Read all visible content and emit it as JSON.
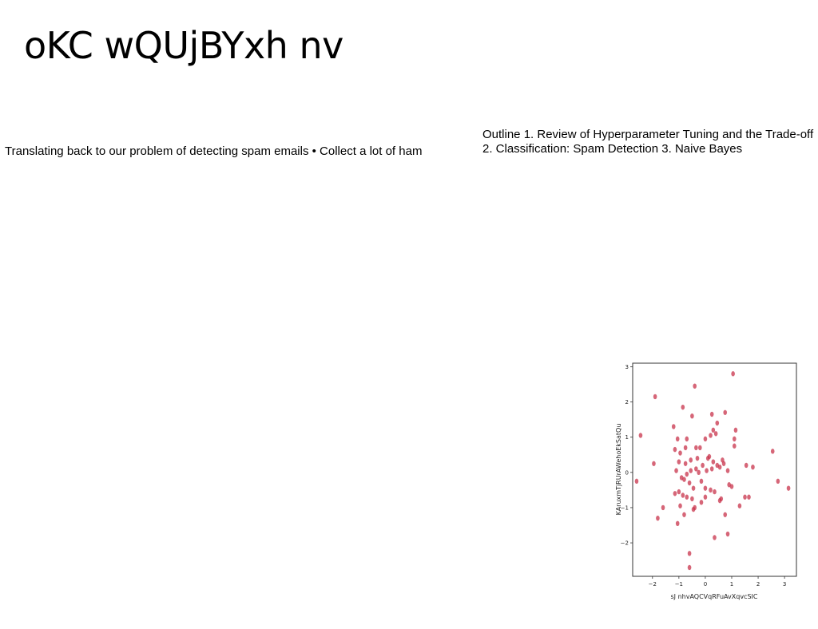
{
  "slide": {
    "title": "oKC wQUjBYxh nv",
    "body_text": "Translating back to our problem of detecting spam emails • Collect a lot of ham",
    "outline_text": "Outline 1. Review of Hyperparameter Tuning and the Trade-off 2. Classification: Spam Detection 3. Naive Bayes"
  },
  "chart_data": {
    "type": "scatter",
    "title": "",
    "xlabel": "sJ nhvAQCVqRFuAvXqvcSIC",
    "ylabel": "KAruxmTjRUrAWehoEkSatQu",
    "xlim": [
      -2.75,
      3.45
    ],
    "ylim": [
      -2.95,
      3.1
    ],
    "xticks": [
      -2,
      -1,
      0,
      1,
      2,
      3
    ],
    "yticks": [
      -2,
      -1,
      0,
      1,
      2,
      3
    ],
    "xtick_labels": [
      "−2",
      "−1",
      "0",
      "1",
      "2",
      "3"
    ],
    "ytick_labels": [
      "−2",
      "−1",
      "0",
      "1",
      "2",
      "3"
    ],
    "grid": false,
    "marker_color": "#c8334b",
    "points": [
      [
        -1.9,
        2.15
      ],
      [
        -0.4,
        2.45
      ],
      [
        1.05,
        2.8
      ],
      [
        -0.85,
        1.85
      ],
      [
        -0.5,
        1.6
      ],
      [
        0.25,
        1.65
      ],
      [
        0.75,
        1.7
      ],
      [
        -2.45,
        1.05
      ],
      [
        -1.2,
        1.3
      ],
      [
        -1.05,
        0.95
      ],
      [
        -0.7,
        0.95
      ],
      [
        0.45,
        1.4
      ],
      [
        0.3,
        1.2
      ],
      [
        1.15,
        1.2
      ],
      [
        1.1,
        0.95
      ],
      [
        -1.15,
        0.65
      ],
      [
        -0.95,
        0.55
      ],
      [
        -0.75,
        0.7
      ],
      [
        -0.35,
        0.7
      ],
      [
        -0.2,
        0.7
      ],
      [
        0.0,
        0.95
      ],
      [
        0.2,
        1.05
      ],
      [
        0.4,
        1.1
      ],
      [
        1.1,
        0.75
      ],
      [
        -1.95,
        0.25
      ],
      [
        -1.0,
        0.3
      ],
      [
        -0.75,
        0.25
      ],
      [
        -0.55,
        0.35
      ],
      [
        -0.3,
        0.4
      ],
      [
        -0.1,
        0.2
      ],
      [
        0.15,
        0.45
      ],
      [
        0.3,
        0.3
      ],
      [
        0.45,
        0.2
      ],
      [
        0.7,
        0.25
      ],
      [
        1.55,
        0.2
      ],
      [
        1.8,
        0.15
      ],
      [
        2.55,
        0.6
      ],
      [
        -2.6,
        -0.25
      ],
      [
        -1.1,
        0.05
      ],
      [
        -0.9,
        -0.15
      ],
      [
        -0.7,
        -0.05
      ],
      [
        -0.55,
        0.05
      ],
      [
        -0.35,
        0.1
      ],
      [
        -0.15,
        -0.25
      ],
      [
        0.05,
        0.05
      ],
      [
        0.25,
        0.1
      ],
      [
        0.55,
        0.15
      ],
      [
        0.85,
        0.05
      ],
      [
        -1.0,
        -0.55
      ],
      [
        -0.8,
        -0.2
      ],
      [
        -0.6,
        -0.3
      ],
      [
        -0.45,
        -0.45
      ],
      [
        0.0,
        -0.45
      ],
      [
        0.2,
        -0.5
      ],
      [
        0.35,
        -0.55
      ],
      [
        0.9,
        -0.35
      ],
      [
        1.0,
        -0.4
      ],
      [
        2.75,
        -0.25
      ],
      [
        3.15,
        -0.45
      ],
      [
        -1.6,
        -1.0
      ],
      [
        -0.95,
        -0.95
      ],
      [
        -0.7,
        -0.7
      ],
      [
        -0.5,
        -0.75
      ],
      [
        -0.45,
        -1.05
      ],
      [
        -0.15,
        -0.85
      ],
      [
        0.0,
        -0.7
      ],
      [
        0.55,
        -0.8
      ],
      [
        0.75,
        -1.2
      ],
      [
        1.3,
        -0.95
      ],
      [
        1.5,
        -0.7
      ],
      [
        -1.8,
        -1.3
      ],
      [
        -1.05,
        -1.45
      ],
      [
        -0.8,
        -1.2
      ],
      [
        -0.4,
        -1.0
      ],
      [
        0.35,
        -1.85
      ],
      [
        0.85,
        -1.75
      ],
      [
        -0.6,
        -2.3
      ],
      [
        -0.6,
        -2.7
      ],
      [
        1.65,
        -0.7
      ],
      [
        -0.85,
        -0.65
      ],
      [
        0.6,
        -0.75
      ],
      [
        -1.15,
        -0.6
      ],
      [
        0.1,
        0.4
      ],
      [
        -0.25,
        0.0
      ],
      [
        0.65,
        0.35
      ]
    ]
  }
}
